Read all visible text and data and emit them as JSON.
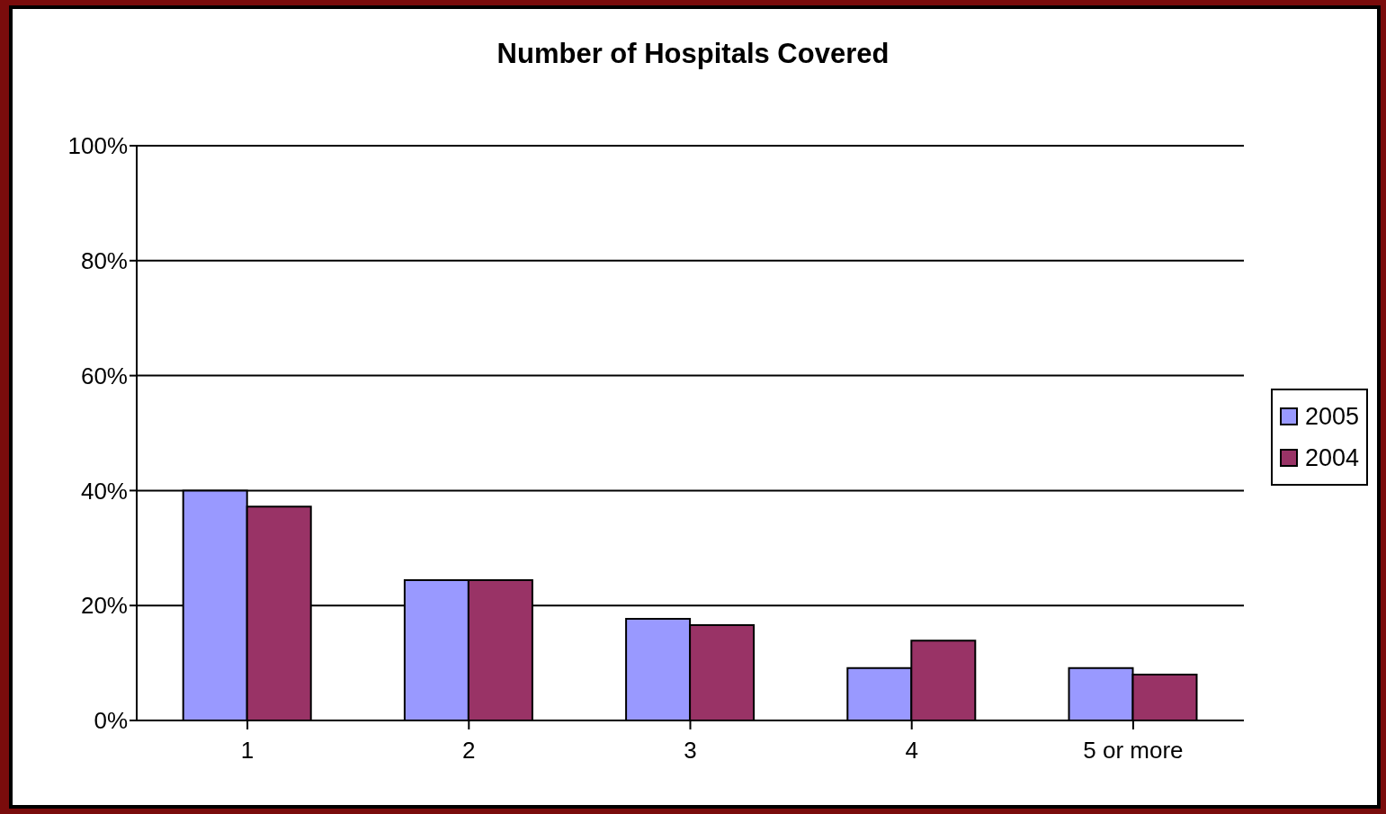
{
  "chart_data": {
    "type": "bar",
    "title": "Number of Hospitals Covered",
    "categories": [
      "1",
      "2",
      "3",
      "4",
      "5 or more"
    ],
    "series": [
      {
        "name": "2005",
        "color": "#9999ff",
        "values": [
          40,
          24.4,
          17.7,
          9.1,
          9.1
        ]
      },
      {
        "name": "2004",
        "color": "#993366",
        "values": [
          37.2,
          24.4,
          16.6,
          13.9,
          8.0
        ]
      }
    ],
    "ylim": [
      0,
      100
    ],
    "yticks": [
      {
        "value": 0,
        "label": "0%"
      },
      {
        "value": 20,
        "label": "20%"
      },
      {
        "value": 40,
        "label": "40%"
      },
      {
        "value": 60,
        "label": "60%"
      },
      {
        "value": 80,
        "label": "80%"
      },
      {
        "value": 100,
        "label": "100%"
      }
    ],
    "grid": "y",
    "legend": "right"
  }
}
